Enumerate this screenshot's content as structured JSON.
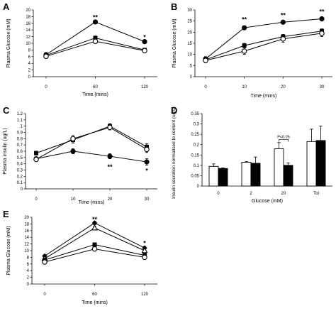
{
  "chart_data": [
    {
      "id": "A",
      "type": "line",
      "letter": "A",
      "x": [
        0,
        60,
        120
      ],
      "x_ticks": [
        "0",
        "60",
        "120"
      ],
      "xlabel": "Time (mins)",
      "ylabel": "Plasma Glucose (mM)",
      "ylim": [
        0,
        20
      ],
      "y_ticks": [
        0,
        2,
        4,
        6,
        8,
        10,
        12,
        14,
        16,
        18,
        20
      ],
      "series": [
        {
          "marker": "filled-circle",
          "values": [
            6.6,
            16.4,
            10.5
          ],
          "errors": [
            0.4,
            0.5,
            0.5
          ]
        },
        {
          "marker": "filled-square",
          "values": [
            6.4,
            11.6,
            8.0
          ],
          "errors": [
            0.4,
            0.6,
            0.4
          ]
        },
        {
          "marker": "open-circle",
          "values": [
            6.1,
            10.6,
            7.8
          ],
          "errors": [
            0.4,
            0.5,
            0.4
          ]
        }
      ],
      "annotations": [
        {
          "text": "**",
          "x": 60,
          "y": 18.0
        },
        {
          "text": "*",
          "x": 120,
          "y": 12.0
        }
      ]
    },
    {
      "id": "B",
      "type": "line",
      "letter": "B",
      "x": [
        0,
        10,
        20,
        30
      ],
      "x_ticks": [
        "0",
        "10",
        "20",
        "30"
      ],
      "xlabel": "Time (mins)",
      "ylabel": "Plasma Glucose (mM)",
      "ylim": [
        0,
        30
      ],
      "y_ticks": [
        0,
        5,
        10,
        15,
        20,
        25,
        30
      ],
      "series": [
        {
          "marker": "filled-circle",
          "values": [
            8.0,
            22.0,
            24.5,
            26.0
          ],
          "errors": [
            1.0,
            0.8,
            0.8,
            0.8
          ]
        },
        {
          "marker": "filled-square",
          "values": [
            7.6,
            14.0,
            18.0,
            20.5
          ],
          "errors": [
            1.0,
            1.0,
            1.0,
            1.0
          ]
        },
        {
          "marker": "open-circle",
          "values": [
            7.3,
            11.5,
            17.0,
            19.5
          ],
          "errors": [
            1.0,
            1.5,
            1.5,
            1.5
          ]
        }
      ],
      "annotations": [
        {
          "text": "**",
          "x": 10,
          "y": 26.0
        },
        {
          "text": "**",
          "x": 20,
          "y": 28.0
        },
        {
          "text": "**",
          "x": 30,
          "y": 29.5
        }
      ]
    },
    {
      "id": "C",
      "type": "line",
      "letter": "C",
      "x": [
        0,
        10,
        20,
        30
      ],
      "x_ticks": [
        "0",
        "10",
        "20",
        "30"
      ],
      "xlabel": "Time (mins)",
      "ylabel": "Plasma insulin (ug/L)",
      "ylim": [
        0,
        1.2
      ],
      "y_ticks": [
        "0",
        "0.1",
        "0.2",
        "0.3",
        "0.4",
        "0.5",
        "0.6",
        "0.7",
        "0.8",
        "0.9",
        "1",
        "1.1",
        "1.2"
      ],
      "series": [
        {
          "marker": "filled-circle",
          "values": [
            0.48,
            0.6,
            0.52,
            0.43
          ],
          "errors": [
            0.03,
            0.04,
            0.04,
            0.05
          ]
        },
        {
          "marker": "filled-square",
          "values": [
            0.57,
            0.78,
            1.0,
            0.67
          ],
          "errors": [
            0.03,
            0.05,
            0.04,
            0.05
          ]
        },
        {
          "marker": "open-circle",
          "values": [
            0.47,
            0.8,
            0.98,
            0.63
          ],
          "errors": [
            0.03,
            0.05,
            0.04,
            0.05
          ]
        }
      ],
      "annotations": [
        {
          "text": "**",
          "x": 20,
          "y": 0.36
        },
        {
          "text": "*",
          "x": 30,
          "y": 0.3
        }
      ]
    },
    {
      "id": "D",
      "type": "bar",
      "letter": "D",
      "categories": [
        "0",
        "2",
        "20",
        "Tol"
      ],
      "xlabel": "Glucose (mM)",
      "ylabel": "Insulin secretion normalised to content (ug/L)",
      "ylim": [
        0,
        0.35
      ],
      "y_ticks": [
        "0",
        "0.05",
        "0.1",
        "0.15",
        "0.2",
        "0.25",
        "0.3",
        "0.35"
      ],
      "series": [
        {
          "fill": "open",
          "values": [
            0.095,
            0.115,
            0.18,
            0.215
          ],
          "errors": [
            0.012,
            0.003,
            0.03,
            0.06
          ]
        },
        {
          "fill": "filled",
          "values": [
            0.085,
            0.11,
            0.1,
            0.22
          ],
          "errors": [
            0.003,
            0.03,
            0.012,
            0.07
          ]
        }
      ],
      "annotations": [
        {
          "text": "P<0.05",
          "category": "20",
          "y": 0.225
        }
      ]
    },
    {
      "id": "E",
      "type": "line",
      "letter": "E",
      "x": [
        0,
        60,
        120
      ],
      "x_ticks": [
        "0",
        "60",
        "120"
      ],
      "xlabel": "Time (mins)",
      "ylabel": "Plasma Glucose (mM)",
      "ylim": [
        0,
        20
      ],
      "y_ticks": [
        0,
        2,
        4,
        6,
        8,
        10,
        12,
        14,
        16,
        18,
        20
      ],
      "series": [
        {
          "marker": "filled-diamond",
          "values": [
            8.4,
            18.3,
            10.8
          ],
          "errors": [
            0.4,
            0.5,
            0.5
          ]
        },
        {
          "marker": "open-triangle",
          "values": [
            7.6,
            16.8,
            10.0
          ],
          "errors": [
            0.4,
            0.5,
            0.5
          ]
        },
        {
          "marker": "filled-square",
          "values": [
            7.2,
            11.8,
            8.6
          ],
          "errors": [
            0.4,
            0.5,
            0.4
          ]
        },
        {
          "marker": "open-circle",
          "values": [
            6.6,
            10.5,
            8.0
          ],
          "errors": [
            0.4,
            0.5,
            0.4
          ]
        }
      ],
      "annotations": [
        {
          "text": "**",
          "x": 60,
          "y": 19.6
        },
        {
          "text": "*",
          "x": 120,
          "y": 12.4
        }
      ]
    }
  ]
}
